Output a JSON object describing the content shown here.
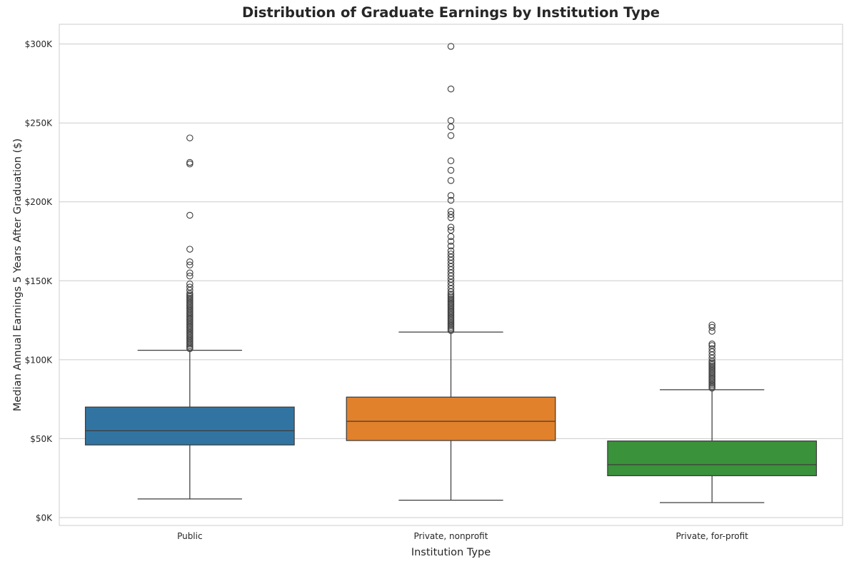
{
  "chart_data": {
    "type": "box",
    "title": "Distribution of Graduate Earnings by Institution Type",
    "xlabel": "Institution Type",
    "ylabel": "Median Annual Earnings 5 Years After Graduation ($)",
    "ylim": [
      -5000,
      312500
    ],
    "yticks": [
      {
        "value": 0,
        "label": "$0K"
      },
      {
        "value": 50000,
        "label": "$50K"
      },
      {
        "value": 100000,
        "label": "$100K"
      },
      {
        "value": 150000,
        "label": "$150K"
      },
      {
        "value": 200000,
        "label": "$200K"
      },
      {
        "value": 250000,
        "label": "$250K"
      },
      {
        "value": 300000,
        "label": "$300K"
      }
    ],
    "grid": "horizontal",
    "legend": "none",
    "categories": [
      "Public",
      "Private, nonprofit",
      "Private, for-profit"
    ],
    "boxes": [
      {
        "category": "Public",
        "color": "#3274a1",
        "whisker_low": 11800,
        "q1": 46000,
        "median": 55000,
        "q3": 70000,
        "whisker_high": 106000,
        "outliers": [
          107000,
          108000,
          109000,
          110000,
          111000,
          112000,
          113000,
          114000,
          115000,
          116000,
          117000,
          118000,
          119000,
          120000,
          121000,
          122000,
          123000,
          124000,
          125000,
          126000,
          127000,
          128000,
          129000,
          130000,
          131000,
          132000,
          133000,
          134000,
          135000,
          136000,
          137000,
          138000,
          139000,
          140000,
          141000,
          142000,
          144000,
          146000,
          148000,
          153000,
          155000,
          160000,
          162000,
          170000,
          191500,
          224000,
          225000,
          240500
        ]
      },
      {
        "category": "Private, nonprofit",
        "color": "#e1812c",
        "whisker_low": 11000,
        "q1": 48800,
        "median": 61000,
        "q3": 76300,
        "whisker_high": 117500,
        "outliers": [
          118500,
          119500,
          120500,
          121500,
          122500,
          123500,
          124500,
          125500,
          126500,
          127500,
          128500,
          129500,
          130500,
          131500,
          132500,
          133500,
          134500,
          135500,
          136500,
          137500,
          138500,
          139500,
          140500,
          141500,
          143000,
          145000,
          147000,
          149000,
          151000,
          153000,
          155000,
          157000,
          159000,
          161000,
          163000,
          165000,
          167000,
          169000,
          172000,
          175000,
          178000,
          182000,
          184000,
          190000,
          192000,
          194000,
          201000,
          204000,
          213500,
          220000,
          226000,
          242000,
          247500,
          251500,
          271500,
          298500
        ]
      },
      {
        "category": "Private, for-profit",
        "color": "#3a923a",
        "whisker_low": 9500,
        "q1": 26500,
        "median": 33500,
        "q3": 48500,
        "whisker_high": 81000,
        "outliers": [
          82000,
          83000,
          84000,
          85000,
          86000,
          87000,
          88000,
          89000,
          90000,
          91000,
          92000,
          93000,
          94000,
          95000,
          96000,
          97000,
          98000,
          99000,
          101000,
          103000,
          105000,
          107000,
          109000,
          110000,
          118000,
          120500,
          122000
        ]
      }
    ]
  }
}
